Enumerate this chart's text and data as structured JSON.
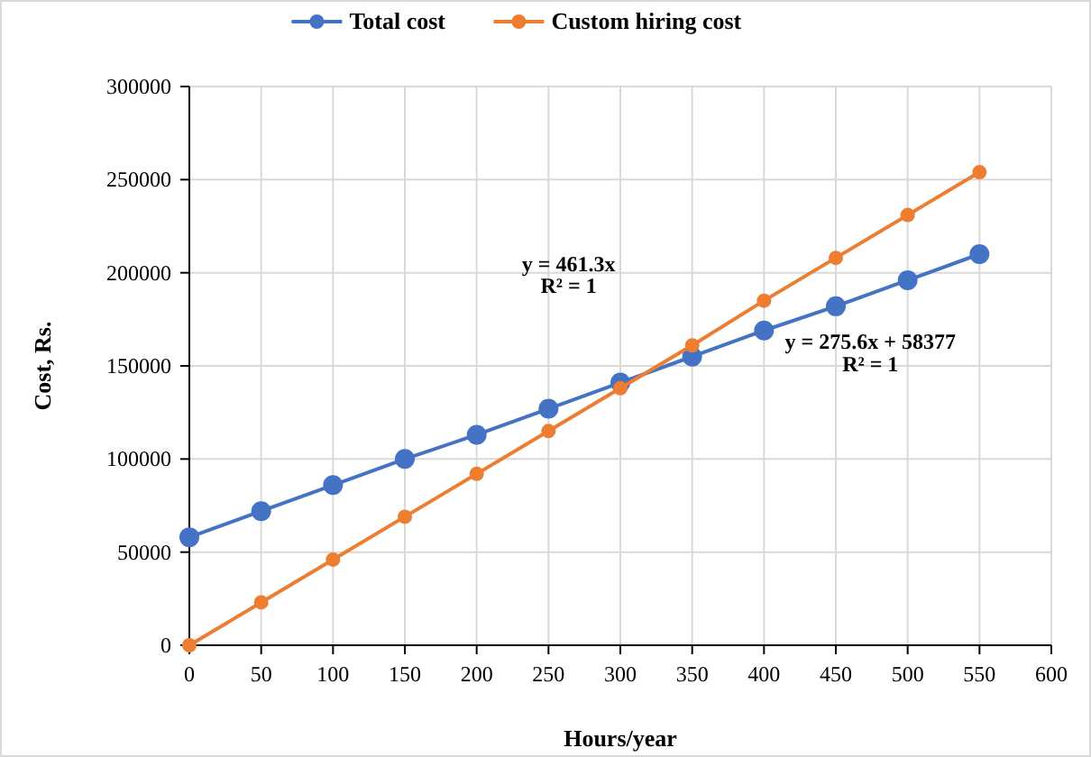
{
  "chart_data": {
    "type": "line",
    "xlabel": "Hours/year",
    "ylabel": "Cost, Rs.",
    "x": [
      0,
      50,
      100,
      150,
      200,
      250,
      300,
      350,
      400,
      450,
      500,
      550
    ],
    "series": [
      {
        "name": "Total cost",
        "color": "#4472c4",
        "values": [
          58000,
          72000,
          86000,
          100000,
          113000,
          127000,
          141000,
          155000,
          169000,
          182000,
          196000,
          210000
        ]
      },
      {
        "name": "Custom hiring cost",
        "color": "#ed7d31",
        "values": [
          0,
          23000,
          46000,
          69000,
          92000,
          115000,
          138000,
          161000,
          185000,
          208000,
          231000,
          254000
        ]
      }
    ],
    "xlim": [
      0,
      600
    ],
    "xticks": [
      0,
      50,
      100,
      150,
      200,
      250,
      300,
      350,
      400,
      450,
      500,
      550,
      600
    ],
    "ylim": [
      0,
      300000
    ],
    "yticks": [
      0,
      50000,
      100000,
      150000,
      200000,
      250000,
      300000
    ],
    "annotations": [
      "y = 461.3x",
      "R² = 1",
      "y = 275.6x + 58377",
      "R² = 1"
    ],
    "grid": true,
    "legend": "top",
    "marker": "circle",
    "line_style": "solid"
  }
}
